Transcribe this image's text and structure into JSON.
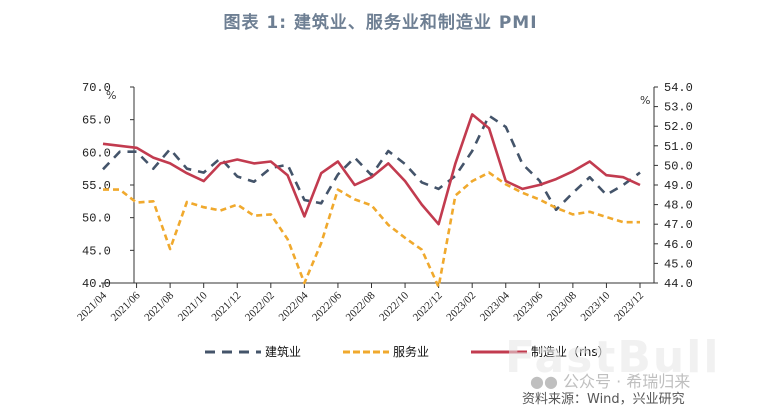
{
  "title": "图表 1:  建筑业、服务业和制造业 PMI",
  "chart_data": {
    "type": "line",
    "title": "图表 1:  建筑业、服务业和制造业 PMI",
    "x": [
      "2021/04",
      "2021/05",
      "2021/06",
      "2021/07",
      "2021/08",
      "2021/09",
      "2021/10",
      "2021/11",
      "2021/12",
      "2022/01",
      "2022/02",
      "2022/03",
      "2022/04",
      "2022/05",
      "2022/06",
      "2022/07",
      "2022/08",
      "2022/09",
      "2022/10",
      "2022/11",
      "2022/12",
      "2023/01",
      "2023/02",
      "2023/03",
      "2023/04",
      "2023/05",
      "2023/06",
      "2023/07",
      "2023/08",
      "2023/09",
      "2023/10",
      "2023/11",
      "2023/12"
    ],
    "x_tick_labels": [
      "2021/04",
      "2021/06",
      "2021/08",
      "2021/10",
      "2021/12",
      "2022/02",
      "2022/04",
      "2022/06",
      "2022/08",
      "2022/10",
      "2022/12",
      "2023/02",
      "2023/04",
      "2023/06",
      "2023/08",
      "2023/10",
      "2023/12"
    ],
    "series": [
      {
        "name": "建筑业",
        "axis": "left",
        "style": "dashed",
        "color": "#44546a",
        "values": [
          57.4,
          60.1,
          60.1,
          57.5,
          60.5,
          57.5,
          56.9,
          59.1,
          56.3,
          55.5,
          57.6,
          58.1,
          52.7,
          52.2,
          56.6,
          59.2,
          56.5,
          60.2,
          58.2,
          55.4,
          54.4,
          56.4,
          60.2,
          65.6,
          63.9,
          58.2,
          55.7,
          51.2,
          53.8,
          56.2,
          53.5,
          55.0,
          56.9
        ]
      },
      {
        "name": "服务业",
        "axis": "left",
        "style": "dashed",
        "color": "#f0a92d",
        "values": [
          54.3,
          54.3,
          52.3,
          52.5,
          45.2,
          52.4,
          51.6,
          51.1,
          52.0,
          50.3,
          50.5,
          46.7,
          40.0,
          46.1,
          54.3,
          52.8,
          51.9,
          48.9,
          46.9,
          45.1,
          39.4,
          53.4,
          55.6,
          56.9,
          55.1,
          53.8,
          52.8,
          51.5,
          50.5,
          50.9,
          50.1,
          49.3,
          49.3
        ]
      },
      {
        "name": "制造业（rhs）",
        "axis": "right",
        "style": "solid",
        "color": "#c23b4f",
        "values": [
          51.1,
          51.0,
          50.9,
          50.4,
          50.1,
          49.6,
          49.2,
          50.1,
          50.3,
          50.1,
          50.2,
          49.5,
          47.4,
          49.6,
          50.2,
          49.0,
          49.4,
          50.1,
          49.2,
          48.0,
          47.0,
          50.1,
          52.6,
          51.9,
          49.2,
          48.8,
          49.0,
          49.3,
          49.7,
          50.2,
          49.5,
          49.4,
          49.0
        ]
      }
    ],
    "xlabel": "",
    "ylabel": "%",
    "ylabel_right": "%",
    "ylim": [
      40.0,
      70.0
    ],
    "ylim_right": [
      44.0,
      54.0
    ],
    "y_ticks": [
      "70.0",
      "65.0",
      "60.0",
      "55.0",
      "50.0",
      "45.0",
      "40.0"
    ],
    "y_ticks_right": [
      "54.0",
      "53.0",
      "52.0",
      "51.0",
      "50.0",
      "49.0",
      "48.0",
      "47.0",
      "46.0",
      "45.0",
      "44.0"
    ],
    "grid": false,
    "legend_position": "bottom"
  },
  "axes": {
    "left_unit": "%",
    "right_unit": "%"
  },
  "legend": {
    "items": [
      {
        "label": "建筑业",
        "color": "#44546a"
      },
      {
        "label": "服务业",
        "color": "#f0a92d"
      },
      {
        "label": "制造业（rhs）",
        "color": "#c23b4f"
      }
    ]
  },
  "footer": {
    "source": "资料来源：Wind，兴业研究",
    "watermark": "公众号 · 希瑞归来",
    "watermark_brand": "FastBull"
  }
}
